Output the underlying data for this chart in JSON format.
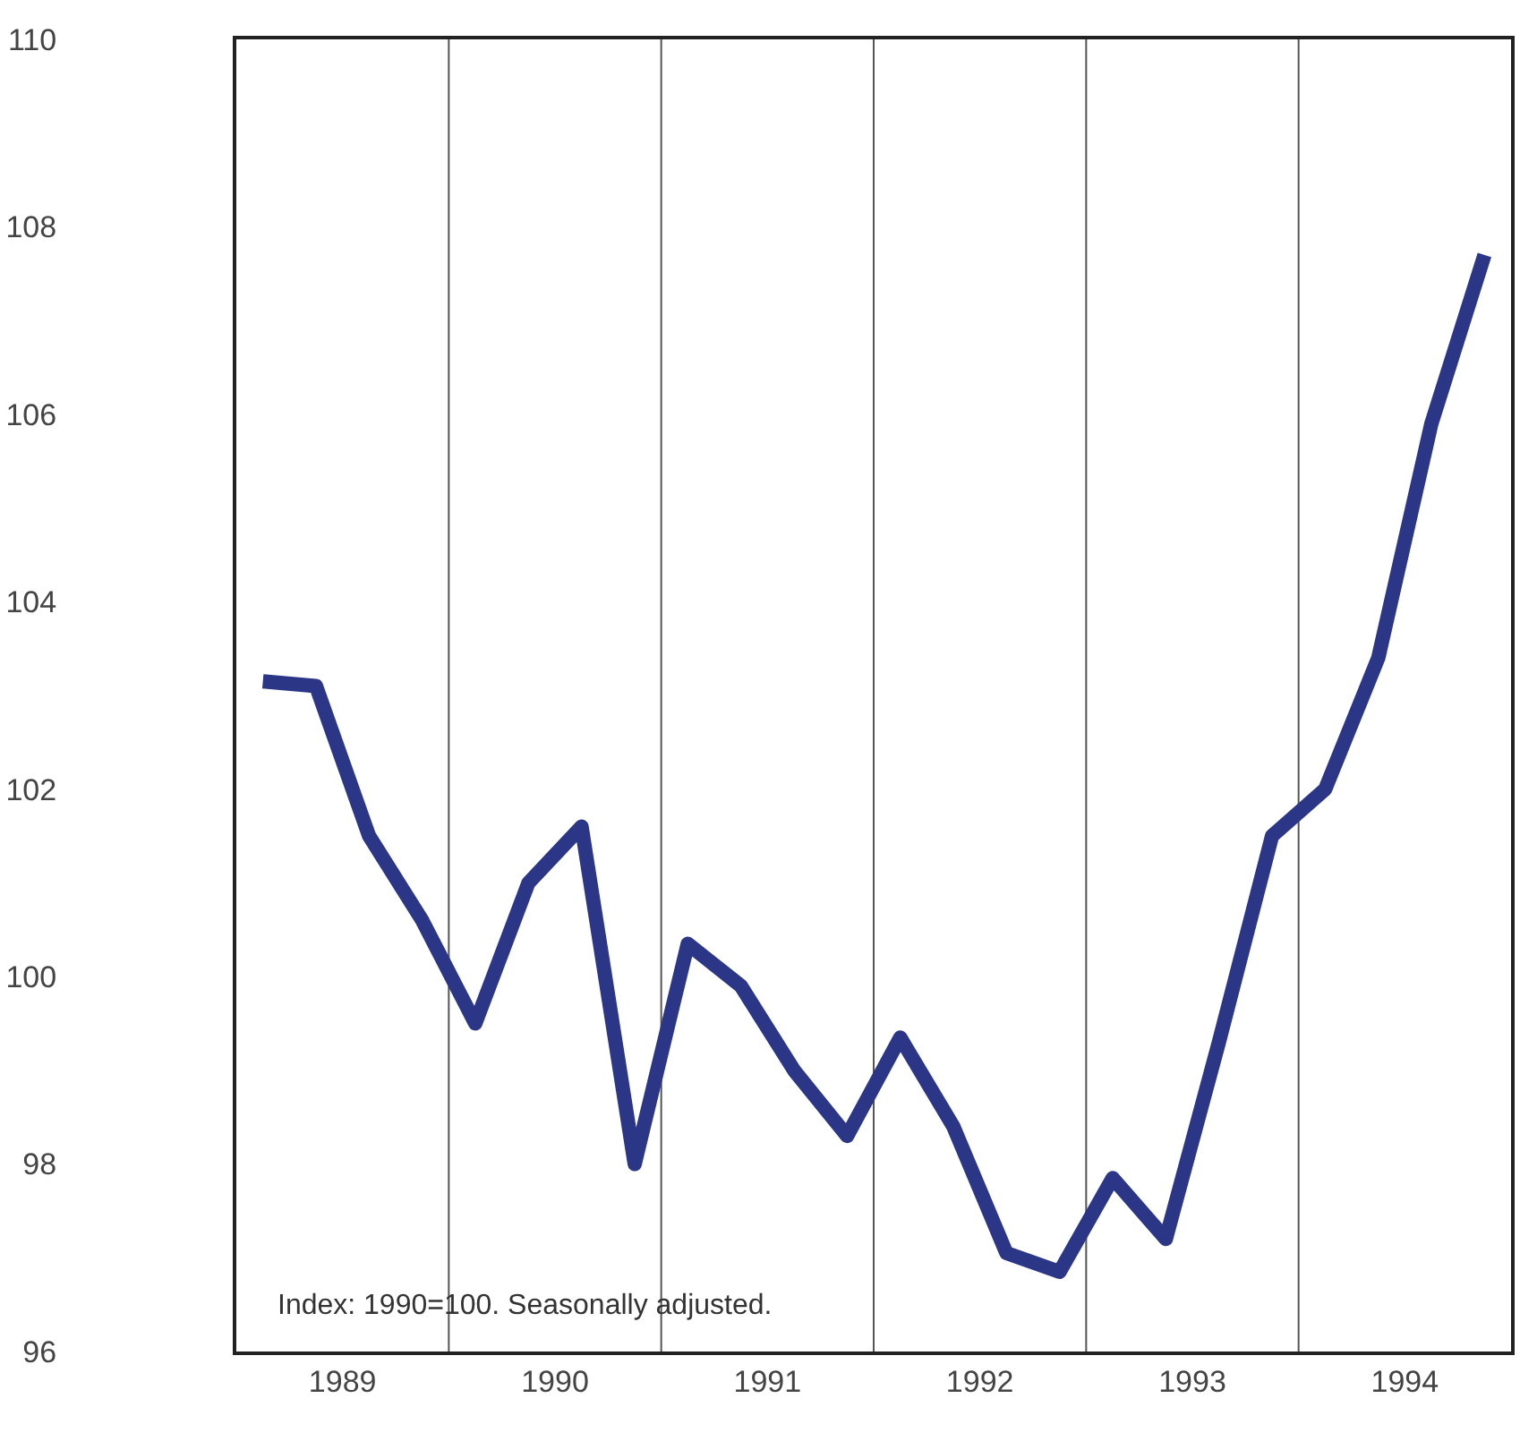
{
  "chart_data": {
    "type": "line",
    "x": [
      1989.125,
      1989.375,
      1989.625,
      1989.875,
      1990.125,
      1990.375,
      1990.625,
      1990.875,
      1991.125,
      1991.375,
      1991.625,
      1991.875,
      1992.125,
      1992.375,
      1992.625,
      1992.875,
      1993.125,
      1993.375,
      1993.625,
      1993.875,
      1994.125,
      1994.375,
      1994.625,
      1994.875
    ],
    "series": [
      {
        "color": "#2b3786",
        "values": [
          103.15,
          103.1,
          101.5,
          100.6,
          99.5,
          101.0,
          101.6,
          98.0,
          100.35,
          99.9,
          99.0,
          98.3,
          99.35,
          98.4,
          97.05,
          96.85,
          97.85,
          97.2,
          99.3,
          101.5,
          102.0,
          103.4,
          105.9,
          107.7
        ]
      }
    ],
    "xlim": [
      1989,
      1995
    ],
    "xticks": [
      {
        "value": 1989.5,
        "label": "1989"
      },
      {
        "value": 1990.5,
        "label": "1990"
      },
      {
        "value": 1991.5,
        "label": "1991"
      },
      {
        "value": 1992.5,
        "label": "1992"
      },
      {
        "value": 1993.5,
        "label": "1993"
      },
      {
        "value": 1994.5,
        "label": "1994"
      }
    ],
    "ylim": [
      96,
      110
    ],
    "yticks": [
      96,
      98,
      100,
      102,
      104,
      106,
      108,
      110
    ],
    "ref_lines": [
      {
        "axis": "x",
        "value": 1990,
        "color": "#555555"
      },
      {
        "axis": "x",
        "value": 1991,
        "color": "#555555"
      },
      {
        "axis": "x",
        "value": 1992,
        "color": "#555555"
      },
      {
        "axis": "x",
        "value": 1993,
        "color": "#555555"
      },
      {
        "axis": "x",
        "value": 1994,
        "color": "#555555"
      }
    ],
    "annotations": [
      "Index: 1990=100. Seasonally adjusted."
    ],
    "grid": false,
    "marker": "none",
    "line_style": "solid"
  }
}
